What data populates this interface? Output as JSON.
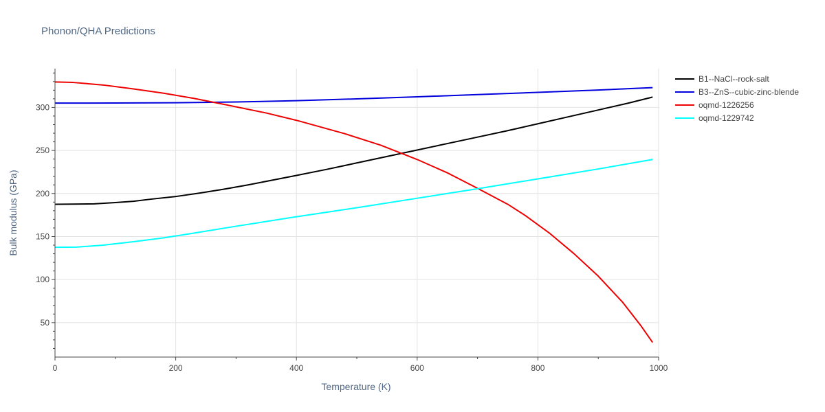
{
  "chart_data": {
    "type": "line",
    "title": "Phonon/QHA Predictions",
    "xlabel": "Temperature (K)",
    "ylabel": "Bulk modulus (GPa)",
    "xlim": [
      0,
      1000
    ],
    "ylim": [
      10,
      345
    ],
    "x_ticks": [
      0,
      200,
      400,
      600,
      800,
      1000
    ],
    "y_ticks": [
      50,
      100,
      150,
      200,
      250,
      300
    ],
    "grid": true,
    "legend_position": "top-right",
    "series": [
      {
        "name": "B1--NaCl--rock-salt",
        "color": "#000000",
        "x": [
          0,
          30,
          65,
          100,
          130,
          160,
          200,
          240,
          280,
          320,
          360,
          400,
          450,
          500,
          550,
          600,
          650,
          700,
          750,
          800,
          850,
          900,
          950,
          990
        ],
        "y": [
          187.5,
          187.7,
          188,
          189.5,
          191,
          193.5,
          196.5,
          200.5,
          205,
          210,
          215.5,
          221,
          228,
          235.5,
          243,
          250.5,
          258,
          265.5,
          273,
          281,
          289,
          297,
          305,
          312
        ]
      },
      {
        "name": "B3--ZnS--cubic-zinc-blende",
        "color": "#0000dd",
        "x": [
          0,
          100,
          200,
          300,
          400,
          500,
          600,
          700,
          800,
          900,
          990
        ],
        "y": [
          305,
          305.1,
          305.4,
          306.3,
          307.8,
          309.9,
          312.3,
          314.9,
          317.5,
          320.2,
          323
        ]
      },
      {
        "name": "oqmd-1226256",
        "color": "#ee0000",
        "x": [
          0,
          30,
          80,
          130,
          180,
          230,
          280,
          350,
          400,
          480,
          540,
          600,
          650,
          700,
          750,
          780,
          820,
          860,
          900,
          940,
          970,
          990
        ],
        "y": [
          329.5,
          329,
          326,
          321.5,
          316.5,
          310.5,
          303.5,
          293.5,
          285,
          269.5,
          256,
          239.5,
          224,
          206,
          187.5,
          174,
          153.5,
          130,
          104,
          74,
          47,
          27
        ]
      },
      {
        "name": "oqmd-1229742",
        "color": "#00ffff",
        "x": [
          0,
          35,
          80,
          130,
          180,
          230,
          300,
          400,
          500,
          600,
          700,
          800,
          900,
          990
        ],
        "y": [
          137.5,
          137.7,
          140,
          144,
          148.5,
          154,
          162,
          173,
          183.5,
          194.5,
          205.5,
          217,
          228.5,
          239.5
        ]
      }
    ]
  }
}
